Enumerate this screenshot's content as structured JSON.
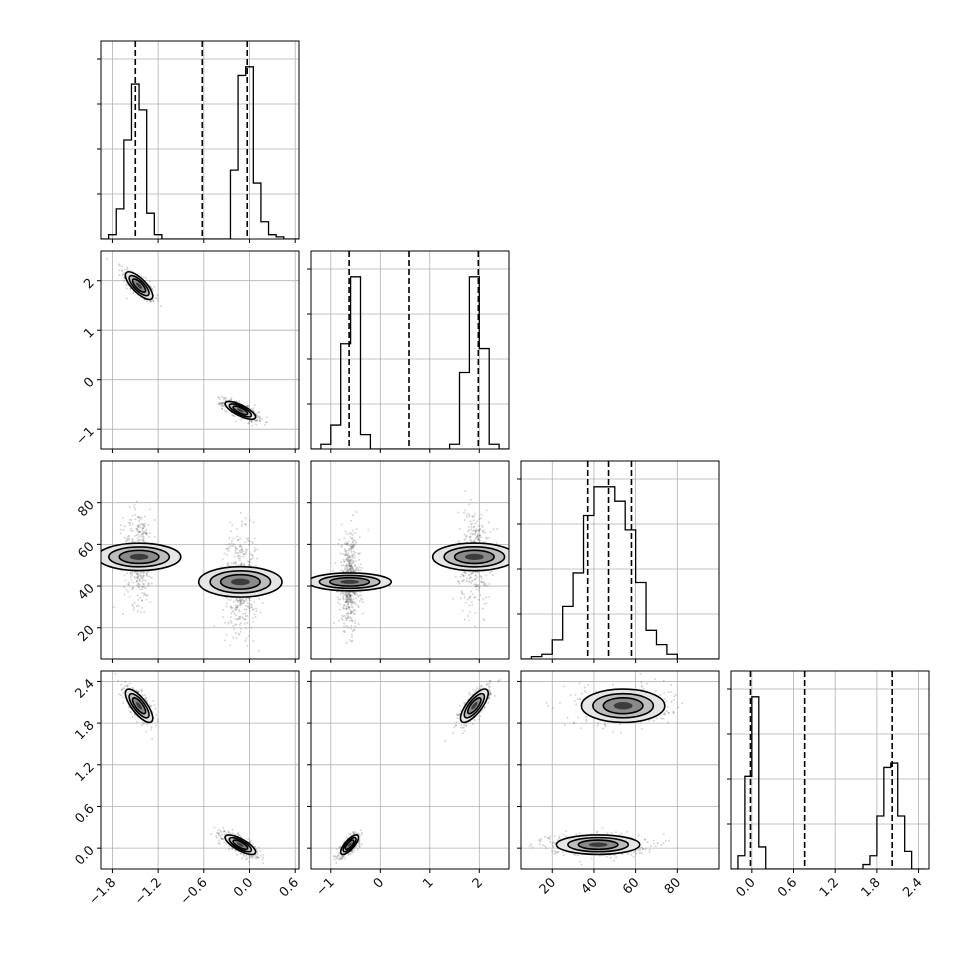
{
  "chart_data": {
    "type": "corner",
    "grid": true,
    "dashed_lines": "quantiles",
    "colors": {
      "line": "#000000",
      "grid": "#b0b0b0",
      "points": "#444444"
    },
    "variables": [
      {
        "range": [
          -1.95,
          0.65
        ],
        "ticks": [
          -1.8,
          -1.2,
          -0.6,
          0.0,
          0.6
        ],
        "tick_labels": [
          "−1.8",
          "−1.2",
          "−0.6",
          "0.0",
          "0.6"
        ],
        "quantiles": [
          -1.5,
          -0.62,
          -0.03
        ],
        "histogram": {
          "edges": [
            -1.95,
            -1.85,
            -1.75,
            -1.65,
            -1.55,
            -1.45,
            -1.35,
            -1.25,
            -1.15,
            -1.05,
            -0.95,
            -0.85,
            -0.75,
            -0.65,
            -0.55,
            -0.45,
            -0.35,
            -0.25,
            -0.15,
            -0.05,
            0.05,
            0.15,
            0.25,
            0.35,
            0.45,
            0.55,
            0.65
          ],
          "counts": [
            0,
            1,
            7,
            23,
            36,
            30,
            6,
            1,
            0,
            0,
            0,
            0,
            0,
            0,
            0,
            0,
            0,
            16,
            38,
            40,
            13,
            4,
            1,
            0.5,
            0,
            0
          ]
        }
      },
      {
        "range": [
          -1.4,
          2.6
        ],
        "ticks": [
          -1,
          0,
          1,
          2
        ],
        "tick_labels": [
          "−1",
          "0",
          "1",
          "2"
        ],
        "quantiles": [
          -0.63,
          0.58,
          1.98
        ],
        "histogram": {
          "edges": [
            -1.4,
            -1.2,
            -1.0,
            -0.8,
            -0.6,
            -0.4,
            -0.2,
            0.0,
            0.2,
            0.4,
            0.6,
            0.8,
            1.0,
            1.2,
            1.4,
            1.6,
            1.8,
            2.0,
            2.2,
            2.4,
            2.6
          ],
          "counts": [
            0,
            1,
            5,
            22,
            36,
            3,
            0,
            0,
            0,
            0,
            0,
            0,
            0,
            0,
            1,
            16,
            36,
            21,
            1,
            0
          ]
        }
      },
      {
        "range": [
          5,
          100
        ],
        "ticks": [
          20,
          40,
          60,
          80
        ],
        "tick_labels": [
          "20",
          "40",
          "60",
          "80"
        ],
        "quantiles": [
          37,
          47,
          58
        ],
        "histogram": {
          "edges": [
            5,
            10,
            15,
            20,
            25,
            30,
            35,
            40,
            45,
            50,
            55,
            60,
            65,
            70,
            75,
            80,
            85,
            90,
            95,
            100
          ],
          "counts": [
            0,
            0.5,
            1,
            4,
            11,
            18,
            30,
            36,
            36,
            33,
            27,
            16,
            6,
            3,
            1,
            0,
            0,
            0,
            0
          ]
        }
      },
      {
        "range": [
          -0.3,
          2.55
        ],
        "ticks": [
          0.0,
          0.6,
          1.2,
          1.8,
          2.4
        ],
        "tick_labels": [
          "0.0",
          "0.6",
          "1.2",
          "1.8",
          "2.4"
        ],
        "quantiles": [
          -0.02,
          0.76,
          2.02
        ],
        "histogram": {
          "edges": [
            -0.3,
            -0.2,
            -0.1,
            0.0,
            0.1,
            0.2,
            0.3,
            0.4,
            0.5,
            0.6,
            0.7,
            0.8,
            0.9,
            1.0,
            1.1,
            1.2,
            1.3,
            1.4,
            1.5,
            1.6,
            1.7,
            1.8,
            1.9,
            2.0,
            2.1,
            2.2,
            2.3,
            2.4,
            2.5
          ],
          "counts": [
            0,
            3,
            21,
            39,
            5,
            0,
            0,
            0,
            0,
            0,
            0,
            0,
            0,
            0,
            0,
            0,
            0,
            0,
            0,
            1,
            3,
            12,
            23,
            24,
            12,
            4,
            0,
            0
          ]
        }
      }
    ],
    "modes": [
      {
        "means": [
          -1.45,
          1.9,
          54,
          2.05
        ],
        "sds": [
          0.09,
          0.14,
          10,
          0.12
        ],
        "weight": 0.42
      },
      {
        "means": [
          -0.12,
          -0.62,
          42,
          0.05
        ],
        "sds": [
          0.1,
          0.09,
          10,
          0.07
        ],
        "weight": 0.58
      }
    ]
  }
}
